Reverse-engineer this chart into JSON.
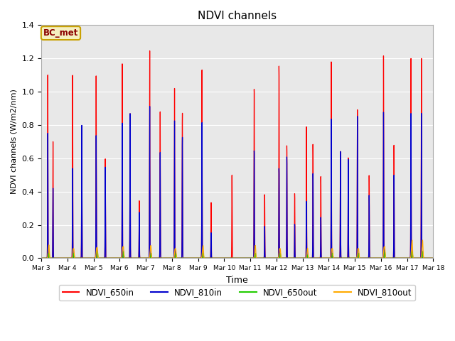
{
  "title": "NDVI channels",
  "xlabel": "Time",
  "ylabel": "NDVI channels (W/m2/nm)",
  "annotation_text": "BC_met",
  "annotation_bg": "#f5f0c0",
  "annotation_border": "#c8a000",
  "annotation_text_color": "#8b0000",
  "ylim": [
    0,
    1.4
  ],
  "background_color": "#e8e8e8",
  "colors": {
    "NDVI_650in": "#ff0000",
    "NDVI_810in": "#0000cc",
    "NDVI_650out": "#22cc00",
    "NDVI_810out": "#ffaa00"
  },
  "x_tick_labels": [
    "Mar 3",
    "Mar 4",
    "Mar 5",
    "Mar 6",
    "Mar 7",
    "Mar 8",
    "Mar 9",
    "Mar 10",
    "Mar 11",
    "Mar 12",
    "Mar 13",
    "Mar 14",
    "Mar 15",
    "Mar 16",
    "Mar 17",
    "Mar 18"
  ],
  "n_days": 15,
  "pts_per_day": 200
}
